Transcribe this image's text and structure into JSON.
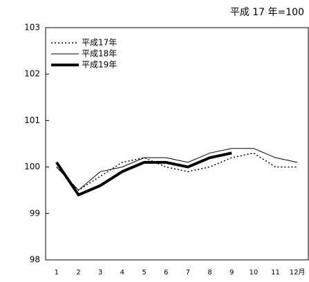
{
  "chart_data": {
    "type": "line",
    "subtitle": "平成 17 年=100",
    "categories": [
      "1",
      "2",
      "3",
      "4",
      "5",
      "6",
      "7",
      "8",
      "9",
      "10",
      "11",
      "12月"
    ],
    "series": [
      {
        "name": "平成17年",
        "color": "#000000",
        "style": "dotted",
        "values": [
          100.0,
          99.5,
          99.8,
          100.1,
          100.2,
          100.0,
          99.9,
          100.0,
          100.2,
          100.3,
          100.0,
          100.0
        ]
      },
      {
        "name": "平成18年",
        "color": "#000000",
        "style": "thin",
        "values": [
          100.0,
          99.5,
          99.9,
          100.0,
          100.2,
          100.2,
          100.1,
          100.3,
          100.4,
          100.4,
          100.2,
          100.1
        ]
      },
      {
        "name": "平成19年",
        "color": "#000000",
        "style": "thick",
        "values": [
          100.1,
          99.4,
          99.6,
          99.9,
          100.1,
          100.1,
          100.0,
          100.2,
          100.3,
          null,
          null,
          null
        ]
      }
    ],
    "ylim": [
      98,
      103
    ],
    "yticks": [
      98,
      99,
      100,
      101,
      102,
      103
    ],
    "legend": "top-left"
  }
}
